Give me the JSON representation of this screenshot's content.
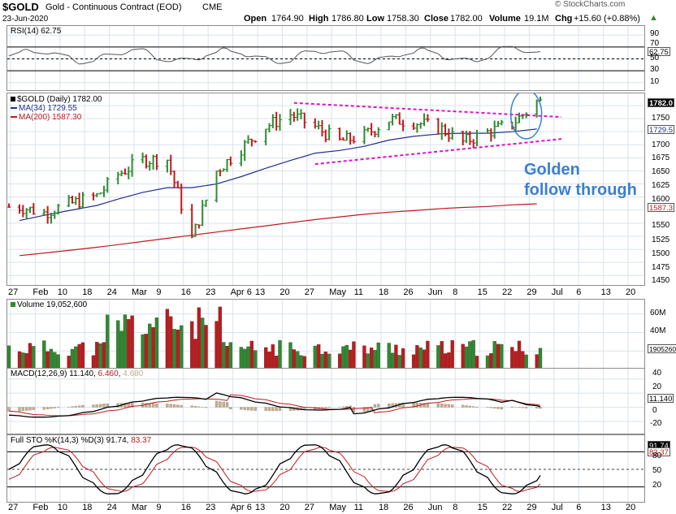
{
  "header": {
    "symbol": "$GOLD",
    "name": "Gold - Continuous Contract (EOD)",
    "exchange": "CME",
    "date": "23-Jun-2020",
    "open_label": "Open",
    "open": "1764.90",
    "high_label": "High",
    "high": "1786.80",
    "low_label": "Low",
    "low": "1758.30",
    "close_label": "Close",
    "close": "1782.00",
    "volume_label": "Volume",
    "volume": "19.1M",
    "chg_label": "Chg",
    "chg": "+15.60 (+0.88%)",
    "chg_arrow": "▲",
    "watermark": "© StockCharts.com"
  },
  "annotation": {
    "line1": "Golden",
    "line2": "follow through"
  },
  "x_axis": {
    "labels": [
      "27",
      "Feb",
      "10",
      "18",
      "24",
      "Mar",
      "9",
      "16",
      "23",
      "Apr 6",
      "13",
      "20",
      "27",
      "May",
      "11",
      "18",
      "26",
      "Jun",
      "8",
      "15",
      "22",
      "29",
      "Jul",
      "6",
      "13",
      "20"
    ]
  },
  "panels": {
    "rsi": {
      "label": "RSI(14) 62.75",
      "value_badge": "62.75",
      "ticks": [
        "90",
        "70",
        "50",
        "30",
        "10"
      ],
      "lines": {
        "upper": 70,
        "lower": 30
      }
    },
    "price": {
      "legend": [
        {
          "text": "$GOLD (Daily) 1782.00",
          "color": "#000000"
        },
        {
          "text": "MA(34) 1729.55",
          "color": "#1f2e8c"
        },
        {
          "text": "MA(200) 1587.30",
          "color": "#c0191b"
        }
      ],
      "ticks": [
        "1775",
        "1750",
        "1725",
        "1700",
        "1675",
        "1650",
        "1625",
        "1600",
        "1575",
        "1550",
        "1525",
        "1500",
        "1475",
        "1450"
      ],
      "close_badge": "1782.0",
      "ma34_badge": "1729.5",
      "ma200_badge": "1587.3",
      "ylim": [
        1438,
        1792
      ]
    },
    "volume": {
      "label": "Volume 19,052,600",
      "ticks": [
        "60M",
        "40M",
        "20M"
      ],
      "badge": "19052600",
      "ylim": [
        0,
        72
      ]
    },
    "macd": {
      "label_prefix": "MACD(12,26,9)",
      "macd_value": "11.140",
      "signal_value": "6.460",
      "hist_value": "4.680",
      "ticks": [
        "40",
        "20",
        "0",
        "-20"
      ],
      "badge": "11.140",
      "ylim": [
        -35,
        50
      ]
    },
    "sto": {
      "label_prefix": "Full STO %K(14,3) %D(3)",
      "k_value": "91.74",
      "d_value": "83.37",
      "ticks": [
        "80",
        "50",
        "20"
      ],
      "k_badge": "91.74",
      "d_badge": "83.37"
    }
  },
  "colors": {
    "up": "#2e8b2e",
    "down": "#c0191b",
    "ma34": "#1f2e8c",
    "ma200": "#c0191b",
    "trend": "#e011c8",
    "circle": "#3b7fd2",
    "grid": "#d7e3ef",
    "hist": "#c3ae91"
  },
  "chart_data": {
    "type": "line",
    "title": "$GOLD Gold - Continuous Contract (EOD) CME",
    "subtitle": "23-Jun-2020",
    "x": [
      "2020-01-27",
      "2020-02-03",
      "2020-02-10",
      "2020-02-18",
      "2020-02-24",
      "2020-03-02",
      "2020-03-09",
      "2020-03-16",
      "2020-03-23",
      "2020-03-30",
      "2020-04-06",
      "2020-04-13",
      "2020-04-20",
      "2020-04-27",
      "2020-05-04",
      "2020-05-11",
      "2020-05-18",
      "2020-05-26",
      "2020-06-01",
      "2020-06-08",
      "2020-06-15",
      "2020-06-22"
    ],
    "series": [
      {
        "name": "$GOLD (Daily)",
        "values": [
          1581,
          1570,
          1586,
          1602,
          1643,
          1671,
          1672,
          1520,
          1650,
          1693,
          1735,
          1758,
          1734,
          1706,
          1718,
          1748,
          1744,
          1730,
          1705,
          1724,
          1740,
          1782
        ]
      },
      {
        "name": "MA(34)",
        "values": [
          1555,
          1565,
          1574,
          1584,
          1596,
          1609,
          1618,
          1618,
          1625,
          1639,
          1655,
          1670,
          1684,
          1689,
          1697,
          1709,
          1716,
          1721,
          1722,
          1722,
          1725,
          1730
        ]
      },
      {
        "name": "MA(200)",
        "values": [
          1488,
          1493,
          1498,
          1504,
          1509,
          1515,
          1521,
          1527,
          1533,
          1539,
          1545,
          1551,
          1557,
          1562,
          1567,
          1571,
          1574,
          1578,
          1580,
          1582,
          1585,
          1587
        ]
      }
    ],
    "ylim": [
      1438,
      1792
    ],
    "trendlines": [
      {
        "name": "upper",
        "points": [
          [
            "2020-04-14",
            1780
          ],
          [
            "2020-06-29",
            1753
          ]
        ]
      },
      {
        "name": "lower",
        "points": [
          [
            "2020-04-20",
            1663
          ],
          [
            "2020-06-29",
            1711
          ]
        ]
      }
    ]
  }
}
